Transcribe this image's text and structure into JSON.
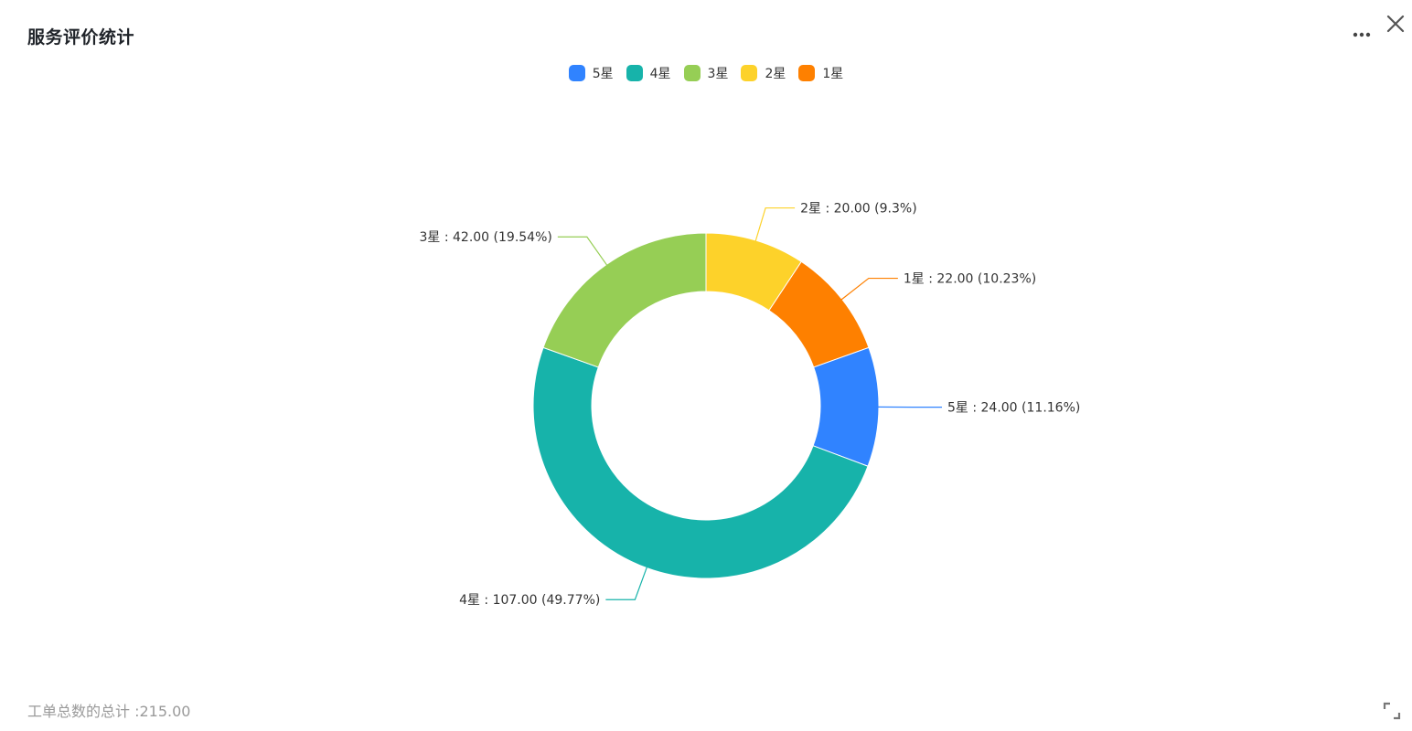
{
  "panel": {
    "title": "服务评价统计",
    "footer_total": "工单总数的总计 :215.00"
  },
  "icons": {
    "more": "more-dots-icon",
    "close": "close-icon",
    "expand": "expand-icon"
  },
  "chart_data": {
    "type": "pie",
    "donut": true,
    "legend_position": "top-center",
    "categories": [
      "5星",
      "4星",
      "3星",
      "2星",
      "1星"
    ],
    "series": [
      {
        "values": [
          24.0,
          107.0,
          42.0,
          20.0,
          22.0
        ],
        "colors": [
          "#3083ff",
          "#17b3aa",
          "#96ce55",
          "#fdd22a",
          "#fe8000"
        ]
      }
    ],
    "slice_labels": [
      "5星 : 24.00 (11.16%)",
      "4星 : 107.00 (49.77%)",
      "3星 : 42.00 (19.54%)",
      "2星 : 20.00 (9.3%)",
      "1星 : 22.00 (10.23%)"
    ],
    "total": 215.0
  }
}
